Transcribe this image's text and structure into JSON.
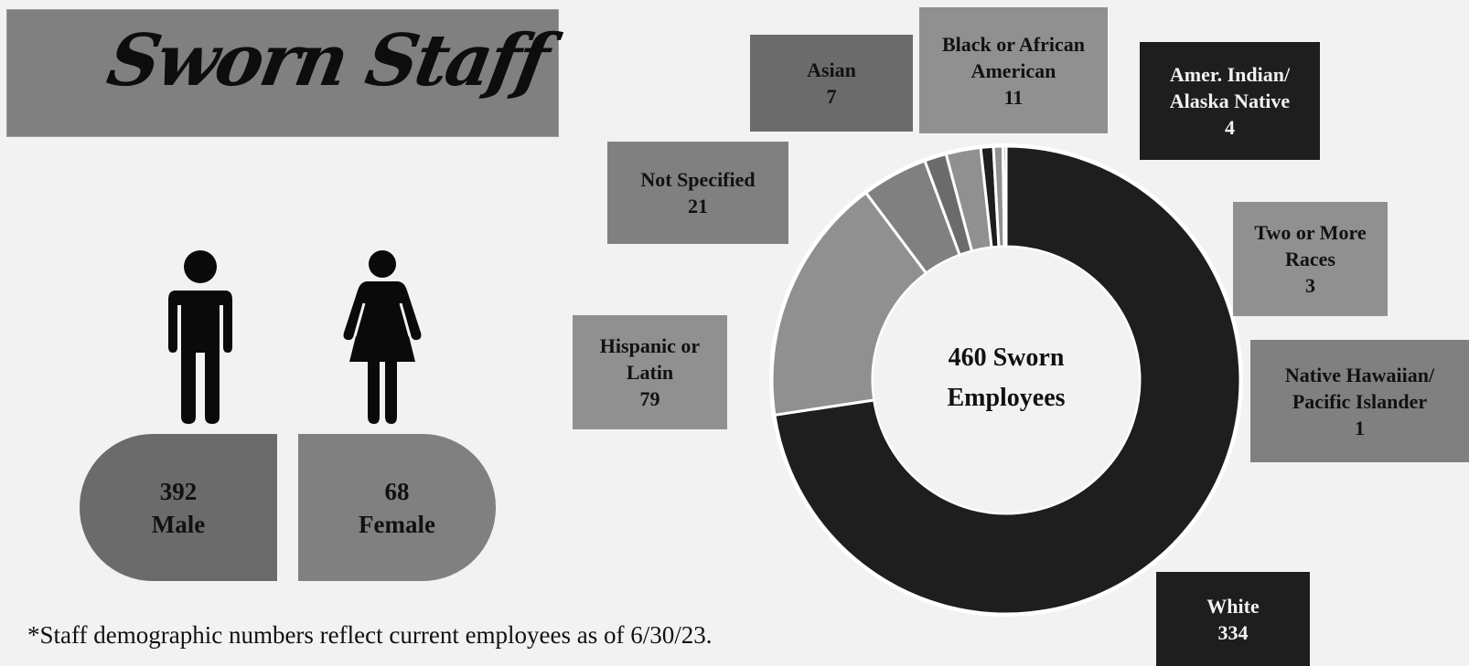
{
  "title": "Sworn Staff",
  "gender": {
    "male": {
      "count": "392",
      "label": "Male"
    },
    "female": {
      "count": "68",
      "label": "Female"
    }
  },
  "center_label": {
    "line1": "460 Sworn",
    "line2": "Employees"
  },
  "footnote": "*Staff demographic numbers reflect current employees as of 6/30/23.",
  "colors": {
    "white": "#1e1e1e",
    "hispanic": "#909090",
    "not_specified": "#808080",
    "asian": "#6b6b6b",
    "black": "#909090",
    "amer_indian": "#1e1e1e",
    "two_or_more": "#909090",
    "native_hawaiian": "#808080",
    "background": "#f2f2f2"
  },
  "chart_data": {
    "type": "pie",
    "categories": [
      "White",
      "Hispanic or Latin",
      "Not Specified",
      "Asian",
      "Black or African American",
      "Amer. Indian/ Alaska Native",
      "Two or More Races",
      "Native Hawaiian/ Pacific Islander"
    ],
    "values": [
      334,
      79,
      21,
      7,
      11,
      4,
      3,
      1
    ],
    "total": 460,
    "labels": {
      "white": {
        "name": "White",
        "value": "334"
      },
      "hispanic": {
        "name1": "Hispanic or",
        "name2": "Latin",
        "value": "79"
      },
      "not_specified": {
        "name": "Not Specified",
        "value": "21"
      },
      "asian": {
        "name": "Asian",
        "value": "7"
      },
      "black": {
        "name1": "Black or African",
        "name2": "American",
        "value": "11"
      },
      "amer_indian": {
        "name1": "Amer. Indian/",
        "name2": "Alaska Native",
        "value": "4"
      },
      "two_or_more": {
        "name1": "Two or More",
        "name2": "Races",
        "value": "3"
      },
      "native_hawaiian": {
        "name1": "Native Hawaiian/",
        "name2": "Pacific Islander",
        "value": "1"
      }
    }
  }
}
